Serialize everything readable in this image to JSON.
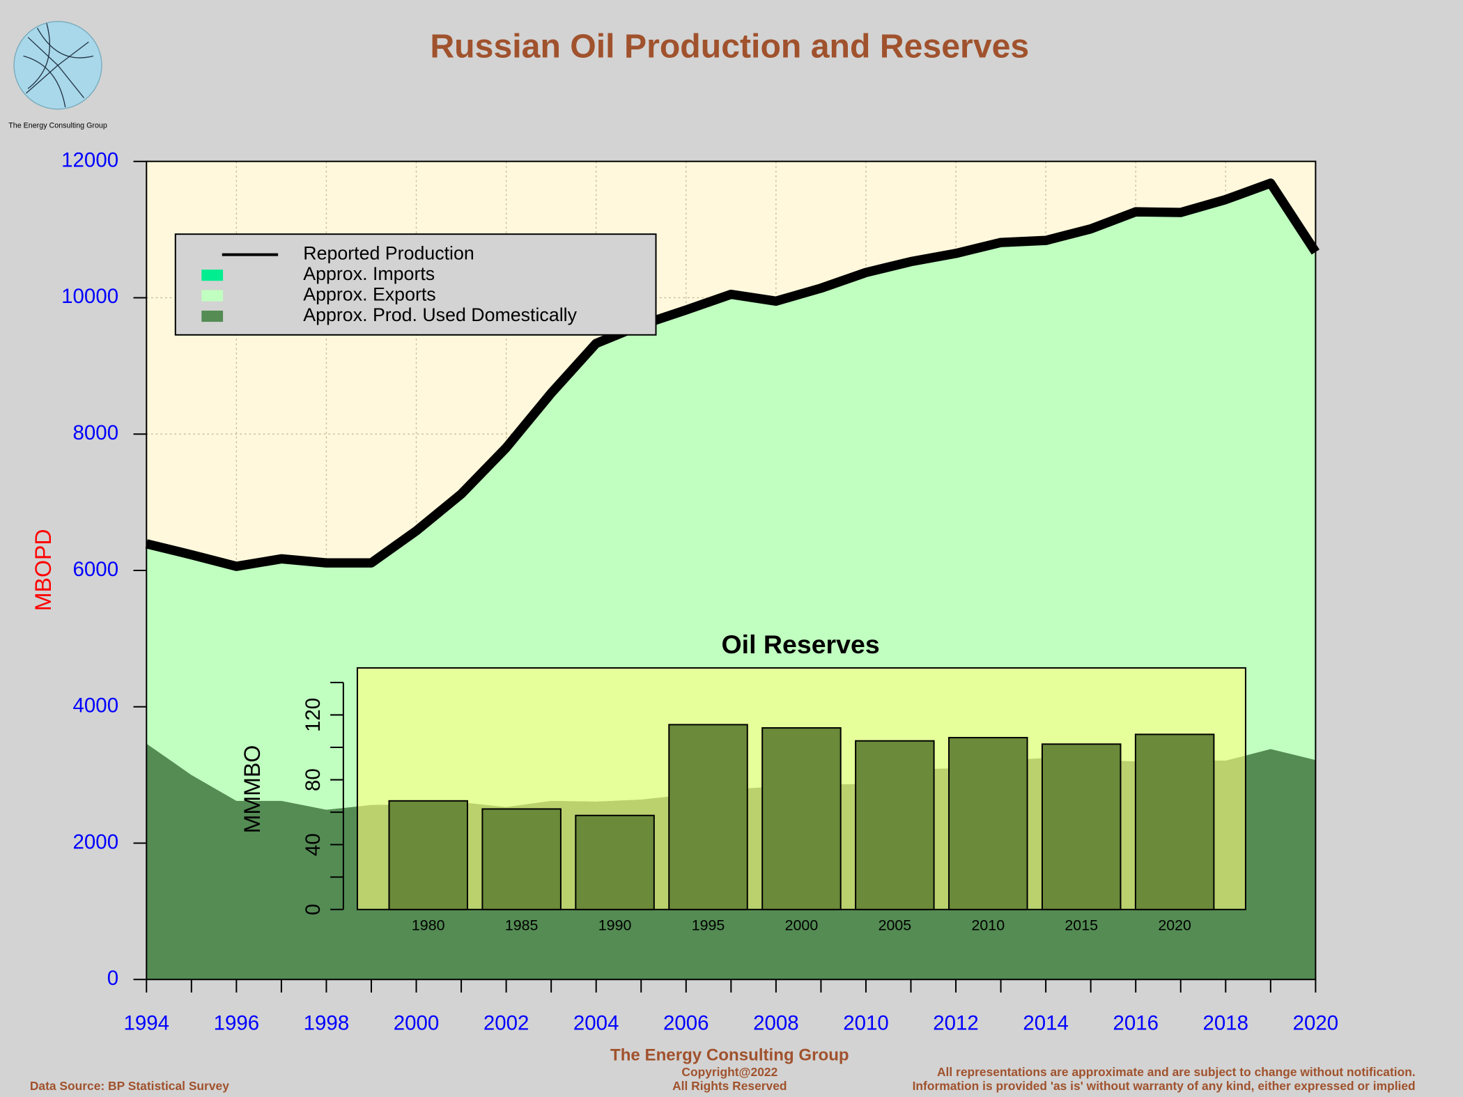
{
  "header": {
    "logo_text": "The Energy Consulting Group"
  },
  "footer": {
    "source": "Data Source: BP Statistical Survey",
    "org": "The Energy Consulting Group",
    "copyright": "Copyright@2022",
    "rights": "All Rights Reserved",
    "disclaimer1": "All representations are approximate and are subject to change without notification.",
    "disclaimer2": "Information is provided 'as is' without warranty of any kind, either expressed or implied"
  },
  "chart_data": [
    {
      "type": "area",
      "title": "Russian Oil Production and Reserves",
      "y_label": "MBOPD",
      "x": [
        1994,
        1995,
        1996,
        1997,
        1998,
        1999,
        2000,
        2001,
        2002,
        2003,
        2004,
        2005,
        2006,
        2007,
        2008,
        2009,
        2010,
        2011,
        2012,
        2013,
        2014,
        2015,
        2016,
        2017,
        2018,
        2019,
        2020
      ],
      "series": [
        {
          "name": "Reported Production",
          "style": "line",
          "color": "#000000",
          "values": [
            6390,
            6230,
            6060,
            6170,
            6110,
            6110,
            6580,
            7120,
            7800,
            8600,
            9330,
            9600,
            9820,
            10050,
            9950,
            10140,
            10370,
            10530,
            10650,
            10810,
            10840,
            11010,
            11260,
            11250,
            11440,
            11680,
            10670
          ]
        },
        {
          "name": "Approx. Imports",
          "style": "area",
          "color": "#00ee90",
          "values": [
            0,
            0,
            0,
            0,
            0,
            0,
            0,
            0,
            0,
            0,
            0,
            0,
            0,
            0,
            0,
            0,
            0,
            0,
            0,
            0,
            0,
            0,
            0,
            0,
            0,
            0,
            0
          ]
        },
        {
          "name": "Approx. Exports",
          "style": "area",
          "color": "#c0ffc0",
          "values": [
            2930,
            3230,
            3440,
            3550,
            3620,
            3550,
            4010,
            4520,
            5270,
            5980,
            6720,
            6960,
            7110,
            7260,
            7120,
            7280,
            7500,
            7450,
            7550,
            7600,
            7590,
            7790,
            8060,
            8030,
            8230,
            8300,
            7450
          ]
        },
        {
          "name": "Approx. Prod. Used Domestically",
          "style": "area",
          "color": "#548c54",
          "values": [
            3460,
            3000,
            2620,
            2620,
            2490,
            2560,
            2570,
            2600,
            2530,
            2620,
            2610,
            2640,
            2710,
            2790,
            2830,
            2860,
            2870,
            3080,
            3100,
            3210,
            3250,
            3220,
            3200,
            3220,
            3210,
            3380,
            3220
          ]
        }
      ],
      "xlim": [
        1994,
        2020
      ],
      "xticks": [
        1994,
        1996,
        1998,
        2000,
        2002,
        2004,
        2006,
        2008,
        2010,
        2012,
        2014,
        2016,
        2018,
        2020
      ],
      "xminorticks": [
        1995,
        1997,
        1999,
        2001,
        2003,
        2005,
        2007,
        2009,
        2011,
        2013,
        2015,
        2017,
        2019
      ],
      "ylim": [
        0,
        12000
      ],
      "yticks": [
        0,
        2000,
        4000,
        6000,
        8000,
        10000,
        12000
      ],
      "grid": true,
      "legend": "top-left",
      "background": "#fff8dc"
    },
    {
      "type": "bar",
      "title": "Oil Reserves",
      "y_label": "MMMBO",
      "categories": [
        "1980",
        "1985",
        "1990",
        "1995",
        "2000",
        "2005",
        "2010",
        "2015",
        "2020"
      ],
      "values": [
        67,
        62,
        58,
        114,
        112,
        104,
        106,
        102,
        108
      ],
      "color": "#6b8a3a",
      "ylim": [
        0,
        149
      ],
      "yticks": [
        0,
        40,
        80,
        120
      ],
      "yminorticks": [
        20,
        60,
        100,
        140
      ],
      "background": "#ffff80"
    }
  ]
}
